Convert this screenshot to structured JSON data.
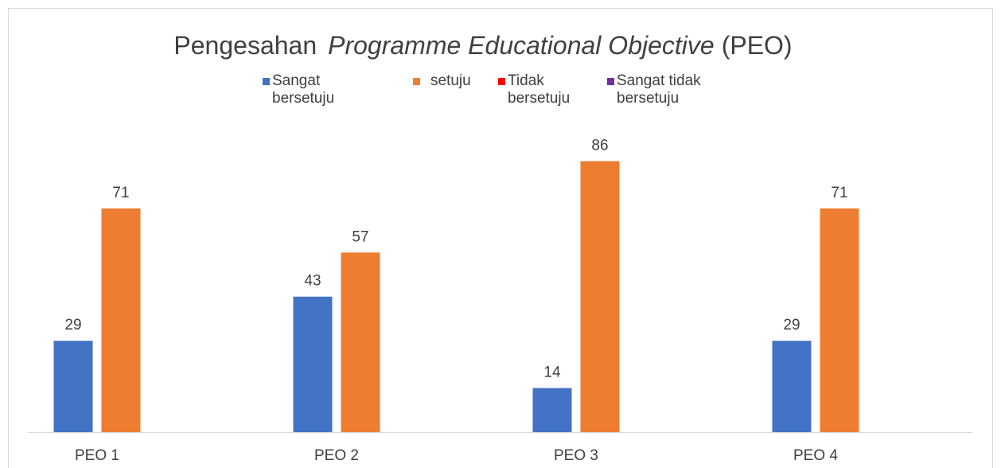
{
  "chart_data": {
    "type": "bar",
    "title": [
      "Pengesahan",
      "Programme Educational Objective",
      "(PEO)"
    ],
    "categories": [
      "PEO 1",
      "PEO 2",
      "PEO 3",
      "PEO 4"
    ],
    "series": [
      {
        "name": "Sangat bersetuju",
        "color": "#4472c4",
        "values": [
          29,
          43,
          14,
          29
        ]
      },
      {
        "name": "setuju",
        "color": "#ed7d31",
        "values": [
          71,
          57,
          86,
          71
        ]
      },
      {
        "name": "Tidak bersetuju",
        "color": "#ff0000",
        "values": [
          null,
          null,
          null,
          null
        ]
      },
      {
        "name": "Sangat tidak bersetuju",
        "color": "#7030a0",
        "values": [
          null,
          null,
          null,
          null
        ]
      }
    ],
    "ylim": [
      0,
      100
    ],
    "legend": "top"
  }
}
